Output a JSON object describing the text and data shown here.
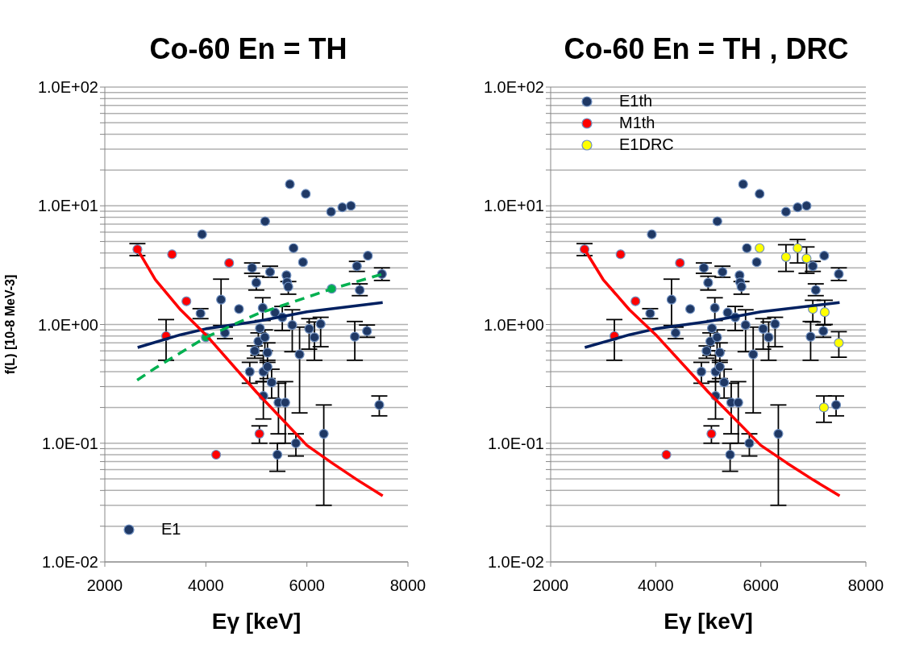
{
  "chart_data": [
    {
      "type": "scatter",
      "title": "Co-60 En = TH",
      "xlabel": "Eγ [keV]",
      "ylabel": "f(L) [10-8 MeV-3]",
      "log": "y",
      "xlim": [
        2000,
        8000
      ],
      "xticks": [
        2000,
        4000,
        6000,
        8000
      ],
      "ylim": [
        0.01,
        100
      ],
      "yticks": [
        {
          "value": 0.01,
          "label": "1.0E-02"
        },
        {
          "value": 0.02,
          "label": null
        },
        {
          "value": 0.03,
          "label": null
        },
        {
          "value": 0.04,
          "label": null
        },
        {
          "value": 0.05,
          "label": null
        },
        {
          "value": 0.06,
          "label": null
        },
        {
          "value": 0.07,
          "label": null
        },
        {
          "value": 0.08,
          "label": null
        },
        {
          "value": 0.09,
          "label": null
        },
        {
          "value": 0.1,
          "label": "1.0E-01"
        },
        {
          "value": 0.2,
          "label": null
        },
        {
          "value": 0.3,
          "label": null
        },
        {
          "value": 0.4,
          "label": null
        },
        {
          "value": 0.5,
          "label": null
        },
        {
          "value": 0.6,
          "label": null
        },
        {
          "value": 0.7,
          "label": null
        },
        {
          "value": 0.8,
          "label": null
        },
        {
          "value": 0.9,
          "label": null
        },
        {
          "value": 1,
          "label": "1.0E+00"
        },
        {
          "value": 2,
          "label": null
        },
        {
          "value": 3,
          "label": null
        },
        {
          "value": 4,
          "label": null
        },
        {
          "value": 5,
          "label": null
        },
        {
          "value": 6,
          "label": null
        },
        {
          "value": 7,
          "label": null
        },
        {
          "value": 8,
          "label": null
        },
        {
          "value": 9,
          "label": null
        },
        {
          "value": 10,
          "label": "1.0E+01"
        },
        {
          "value": 20,
          "label": null
        },
        {
          "value": 30,
          "label": null
        },
        {
          "value": 40,
          "label": null
        },
        {
          "value": 50,
          "label": null
        },
        {
          "value": 60,
          "label": null
        },
        {
          "value": 70,
          "label": null
        },
        {
          "value": 80,
          "label": null
        },
        {
          "value": 90,
          "label": null
        },
        {
          "value": 100,
          "label": "1.0E+02"
        }
      ],
      "grid": "y",
      "legend": "bottom left",
      "marker": "circle",
      "series": [
        {
          "name": "E1",
          "type": "scatter",
          "color": "#1f3864",
          "x": [
            3894,
            3925,
            4301,
            4378,
            4656,
            4869,
            4915,
            4967,
            4998,
            5039,
            5070,
            5125,
            5138,
            5138,
            5168,
            5173,
            5220,
            5220,
            5271,
            5302,
            5369,
            5416,
            5437,
            5513,
            5571,
            5596,
            5606,
            5632,
            5663,
            5710,
            5735,
            5782,
            5855,
            5922,
            5978,
            6045,
            6149,
            6272,
            6334,
            6479,
            6701,
            6871,
            6948,
            6990,
            7046,
            7190,
            7207,
            7433,
            7485
          ],
          "values": [
            1.24,
            5.75,
            1.62,
            0.85,
            1.35,
            0.4,
            3.0,
            0.6,
            2.25,
            0.72,
            0.93,
            1.38,
            0.4,
            0.25,
            0.78,
            7.4,
            0.58,
            0.44,
            2.77,
            0.325,
            1.26,
            0.08,
            0.22,
            1.15,
            0.22,
            2.6,
            2.27,
            2.08,
            15.2,
            0.99,
            4.4,
            0.1,
            0.56,
            3.35,
            12.6,
            0.92,
            0.78,
            1.01,
            0.12,
            8.9,
            9.7,
            10.0,
            0.79,
            3.1,
            1.95,
            0.88,
            3.8,
            0.21,
            2.66
          ],
          "errors": [
            [
              1.12,
              1.36
            ],
            null,
            [
              0.98,
              2.41
            ],
            [
              0.76,
              0.95
            ],
            null,
            [
              0.32,
              0.48
            ],
            [
              2.7,
              3.3
            ],
            [
              0.52,
              0.66
            ],
            [
              1.95,
              2.55
            ],
            [
              0.55,
              0.85
            ],
            null,
            [
              1.08,
              1.68
            ],
            [
              0.33,
              0.6
            ],
            [
              0.16,
              0.33
            ],
            [
              0.6,
              0.9
            ],
            null,
            [
              0.48,
              0.7
            ],
            [
              0.35,
              0.5
            ],
            [
              2.5,
              3.1
            ],
            [
              0.24,
              0.42
            ],
            null,
            [
              0.058,
              0.1
            ],
            [
              0.12,
              0.32
            ],
            [
              0.89,
              1.42
            ],
            [
              0.1,
              0.33
            ],
            null,
            null,
            [
              1.8,
              2.3
            ],
            null,
            [
              0.59,
              1.33
            ],
            null,
            [
              0.078,
              0.12
            ],
            [
              0.18,
              0.95
            ],
            null,
            null,
            [
              0.62,
              1.12
            ],
            [
              0.5,
              1.05
            ],
            [
              0.65,
              1.15
            ],
            [
              0.03,
              0.21
            ],
            null,
            null,
            null,
            [
              0.5,
              1.06
            ],
            [
              2.8,
              3.4
            ],
            [
              1.75,
              2.2
            ],
            [
              0.78,
              0.99
            ],
            null,
            [
              0.17,
              0.25
            ],
            [
              2.35,
              3.0
            ]
          ]
        },
        {
          "type": "scatter",
          "color": "#ff0000",
          "x": [
            2645,
            3213,
            3331,
            3615,
            4203,
            4461,
            5060
          ],
          "values": [
            4.3,
            0.8,
            3.9,
            1.57,
            0.08,
            3.3,
            0.12
          ],
          "errors": [
            [
              3.8,
              4.8
            ],
            [
              0.5,
              1.1
            ],
            null,
            null,
            null,
            null,
            [
              0.1,
              0.14
            ]
          ]
        },
        {
          "type": "scatter",
          "color": "#00b050",
          "x": [
            4000,
            6490
          ],
          "values": [
            0.78,
            2.0
          ]
        },
        {
          "type": "line",
          "marker": "none",
          "color": "#002060",
          "x": [
            2650,
            3500,
            4000,
            5000,
            6000,
            7500
          ],
          "values": [
            0.64,
            0.82,
            0.92,
            1.06,
            1.28,
            1.53
          ]
        },
        {
          "type": "line",
          "marker": "none",
          "color": "#ff0000",
          "x": [
            2645,
            3000,
            3500,
            4000,
            5000,
            6000,
            6500,
            7000,
            7500
          ],
          "values": [
            4.3,
            2.39,
            1.33,
            0.82,
            0.27,
            0.096,
            0.068,
            0.049,
            0.036
          ]
        },
        {
          "type": "line",
          "marker": "none",
          "color": "#00b050",
          "line_style": "dashed",
          "x": [
            2640,
            3000,
            4000,
            5000,
            6500,
            7500
          ],
          "values": [
            0.34,
            0.43,
            0.78,
            1.22,
            2.0,
            2.66
          ]
        }
      ]
    },
    {
      "type": "scatter",
      "title": "Co-60 En = TH , DRC",
      "xlabel": "Eγ [keV]",
      "log": "y",
      "xlim": [
        2000,
        8000
      ],
      "xticks": [
        2000,
        4000,
        6000,
        8000
      ],
      "ylim": [
        0.01,
        100
      ],
      "yticks": [
        {
          "value": 0.01,
          "label": "1.0E-02"
        },
        {
          "value": 0.02,
          "label": null
        },
        {
          "value": 0.03,
          "label": null
        },
        {
          "value": 0.04,
          "label": null
        },
        {
          "value": 0.05,
          "label": null
        },
        {
          "value": 0.06,
          "label": null
        },
        {
          "value": 0.07,
          "label": null
        },
        {
          "value": 0.08,
          "label": null
        },
        {
          "value": 0.09,
          "label": null
        },
        {
          "value": 0.1,
          "label": "1.0E-01"
        },
        {
          "value": 0.2,
          "label": null
        },
        {
          "value": 0.3,
          "label": null
        },
        {
          "value": 0.4,
          "label": null
        },
        {
          "value": 0.5,
          "label": null
        },
        {
          "value": 0.6,
          "label": null
        },
        {
          "value": 0.7,
          "label": null
        },
        {
          "value": 0.8,
          "label": null
        },
        {
          "value": 0.9,
          "label": null
        },
        {
          "value": 1,
          "label": "1.0E+00"
        },
        {
          "value": 2,
          "label": null
        },
        {
          "value": 3,
          "label": null
        },
        {
          "value": 4,
          "label": null
        },
        {
          "value": 5,
          "label": null
        },
        {
          "value": 6,
          "label": null
        },
        {
          "value": 7,
          "label": null
        },
        {
          "value": 8,
          "label": null
        },
        {
          "value": 9,
          "label": null
        },
        {
          "value": 10,
          "label": "1.0E+01"
        },
        {
          "value": 20,
          "label": null
        },
        {
          "value": 30,
          "label": null
        },
        {
          "value": 40,
          "label": null
        },
        {
          "value": 50,
          "label": null
        },
        {
          "value": 60,
          "label": null
        },
        {
          "value": 70,
          "label": null
        },
        {
          "value": 80,
          "label": null
        },
        {
          "value": 90,
          "label": null
        },
        {
          "value": 100,
          "label": "1.0E+02"
        }
      ],
      "grid": "y",
      "legend": "top left",
      "marker": "circle",
      "series": [
        {
          "name": "E1th",
          "type": "scatter",
          "color": "#1f3864",
          "x": [
            3894,
            3925,
            4301,
            4378,
            4656,
            4869,
            4915,
            4967,
            4998,
            5039,
            5070,
            5125,
            5138,
            5138,
            5168,
            5173,
            5220,
            5220,
            5271,
            5302,
            5369,
            5416,
            5437,
            5513,
            5571,
            5596,
            5606,
            5632,
            5663,
            5710,
            5735,
            5782,
            5855,
            5922,
            5978,
            6045,
            6149,
            6272,
            6334,
            6479,
            6701,
            6871,
            6948,
            6990,
            7046,
            7190,
            7207,
            7433,
            7485
          ],
          "values": [
            1.24,
            5.75,
            1.62,
            0.85,
            1.35,
            0.4,
            3.0,
            0.6,
            2.25,
            0.72,
            0.93,
            1.38,
            0.4,
            0.25,
            0.78,
            7.4,
            0.58,
            0.44,
            2.77,
            0.325,
            1.26,
            0.08,
            0.22,
            1.15,
            0.22,
            2.6,
            2.27,
            2.08,
            15.2,
            0.99,
            4.4,
            0.1,
            0.56,
            3.35,
            12.6,
            0.92,
            0.78,
            1.01,
            0.12,
            8.9,
            9.7,
            10.0,
            0.79,
            3.1,
            1.95,
            0.88,
            3.8,
            0.21,
            2.66
          ],
          "errors": [
            [
              1.12,
              1.36
            ],
            null,
            [
              0.98,
              2.41
            ],
            [
              0.76,
              0.95
            ],
            null,
            [
              0.32,
              0.48
            ],
            [
              2.7,
              3.3
            ],
            [
              0.52,
              0.66
            ],
            [
              1.95,
              2.55
            ],
            [
              0.55,
              0.85
            ],
            null,
            [
              1.08,
              1.68
            ],
            [
              0.33,
              0.6
            ],
            [
              0.16,
              0.33
            ],
            [
              0.6,
              0.9
            ],
            null,
            [
              0.48,
              0.7
            ],
            [
              0.35,
              0.5
            ],
            [
              2.5,
              3.1
            ],
            [
              0.24,
              0.42
            ],
            null,
            [
              0.058,
              0.1
            ],
            [
              0.12,
              0.32
            ],
            [
              0.89,
              1.42
            ],
            [
              0.1,
              0.33
            ],
            null,
            null,
            [
              1.8,
              2.3
            ],
            null,
            [
              0.59,
              1.33
            ],
            null,
            [
              0.078,
              0.12
            ],
            [
              0.18,
              0.95
            ],
            null,
            null,
            [
              0.62,
              1.12
            ],
            [
              0.5,
              1.05
            ],
            [
              0.65,
              1.15
            ],
            [
              0.03,
              0.21
            ],
            null,
            null,
            null,
            [
              0.5,
              1.06
            ],
            [
              2.8,
              3.4
            ],
            [
              1.75,
              2.2
            ],
            [
              0.78,
              0.99
            ],
            null,
            [
              0.17,
              0.25
            ],
            [
              2.35,
              3.0
            ]
          ]
        },
        {
          "name": "M1th",
          "type": "scatter",
          "color": "#ff0000",
          "x": [
            2645,
            3213,
            3331,
            3615,
            4203,
            4461,
            5060
          ],
          "values": [
            4.3,
            0.8,
            3.9,
            1.57,
            0.08,
            3.3,
            0.12
          ],
          "errors": [
            [
              3.8,
              4.8
            ],
            [
              0.5,
              1.1
            ],
            null,
            null,
            null,
            null,
            [
              0.1,
              0.14
            ]
          ]
        },
        {
          "name": "E1DRC",
          "type": "scatter",
          "color": "#ffff00",
          "x": [
            5978,
            6479,
            6701,
            6871,
            6990,
            7201,
            7217,
            7485
          ],
          "values": [
            4.4,
            3.7,
            4.4,
            3.6,
            1.35,
            0.2,
            1.27,
            0.7
          ],
          "errors": [
            null,
            [
              2.8,
              4.7
            ],
            [
              3.3,
              5.2
            ],
            [
              2.7,
              4.5
            ],
            [
              1.05,
              1.6
            ],
            [
              0.15,
              0.25
            ],
            [
              1.0,
              1.6
            ],
            [
              0.53,
              0.87
            ]
          ]
        },
        {
          "type": "line",
          "marker": "none",
          "color": "#002060",
          "x": [
            2650,
            3500,
            4000,
            5000,
            6000,
            7500
          ],
          "values": [
            0.64,
            0.82,
            0.92,
            1.06,
            1.28,
            1.53
          ]
        },
        {
          "type": "line",
          "marker": "none",
          "color": "#ff0000",
          "x": [
            2645,
            3000,
            3500,
            4000,
            5000,
            6000,
            6500,
            7000,
            7500
          ],
          "values": [
            4.3,
            2.39,
            1.33,
            0.82,
            0.27,
            0.096,
            0.068,
            0.049,
            0.036
          ]
        }
      ]
    }
  ]
}
